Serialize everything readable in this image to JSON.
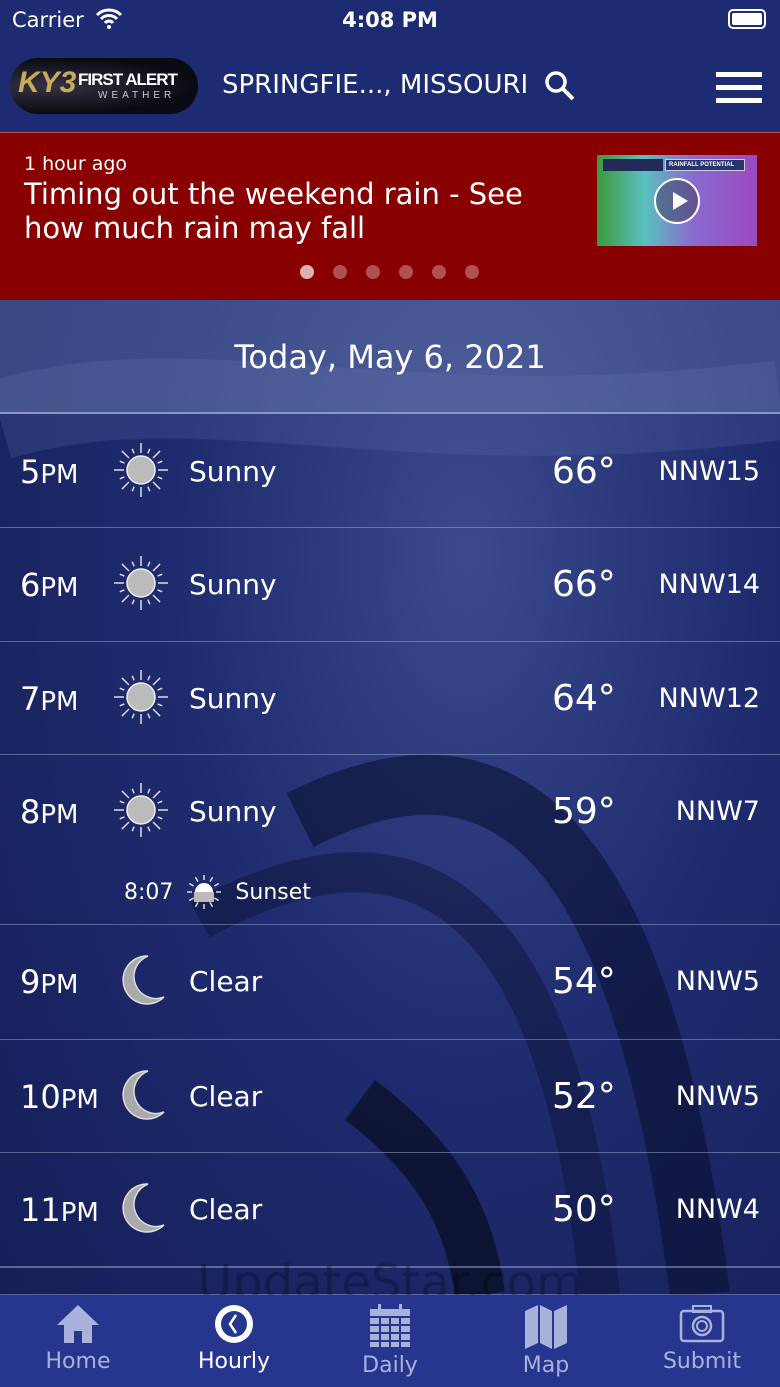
{
  "status": {
    "carrier": "Carrier",
    "time": "4:08 PM"
  },
  "header": {
    "logo_text": "KY3 FIRST ALERT WEATHER",
    "location": "SPRINGFIE..., MISSOURI"
  },
  "banner": {
    "age": "1 hour ago",
    "title": "Timing out the weekend rain - See how much rain may fall",
    "thumbnail_text": "RAINFALL POTENTIAL",
    "pages": 6,
    "active_page": 0
  },
  "date": "Today, May 6, 2021",
  "hours": [
    {
      "hour": "5",
      "ampm": "PM",
      "icon": "sun-icon",
      "condition": "Sunny",
      "temp": "66°",
      "wind": "NNW15"
    },
    {
      "hour": "6",
      "ampm": "PM",
      "icon": "sun-icon",
      "condition": "Sunny",
      "temp": "66°",
      "wind": "NNW14"
    },
    {
      "hour": "7",
      "ampm": "PM",
      "icon": "sun-icon",
      "condition": "Sunny",
      "temp": "64°",
      "wind": "NNW12"
    },
    {
      "hour": "8",
      "ampm": "PM",
      "icon": "sun-icon",
      "condition": "Sunny",
      "temp": "59°",
      "wind": "NNW7",
      "sunset_time": "8:07",
      "sunset_label": "Sunset"
    },
    {
      "hour": "9",
      "ampm": "PM",
      "icon": "moon-icon",
      "condition": "Clear",
      "temp": "54°",
      "wind": "NNW5"
    },
    {
      "hour": "10",
      "ampm": "PM",
      "icon": "moon-icon",
      "condition": "Clear",
      "temp": "52°",
      "wind": "NNW5"
    },
    {
      "hour": "11",
      "ampm": "PM",
      "icon": "moon-icon",
      "condition": "Clear",
      "temp": "50°",
      "wind": "NNW4"
    }
  ],
  "watermark": "UpdateStar.com",
  "nav": [
    {
      "label": "Home",
      "icon": "home-icon"
    },
    {
      "label": "Hourly",
      "icon": "clock-icon",
      "active": true
    },
    {
      "label": "Daily",
      "icon": "calendar-icon"
    },
    {
      "label": "Map",
      "icon": "map-icon"
    },
    {
      "label": "Submit",
      "icon": "camera-icon"
    }
  ]
}
